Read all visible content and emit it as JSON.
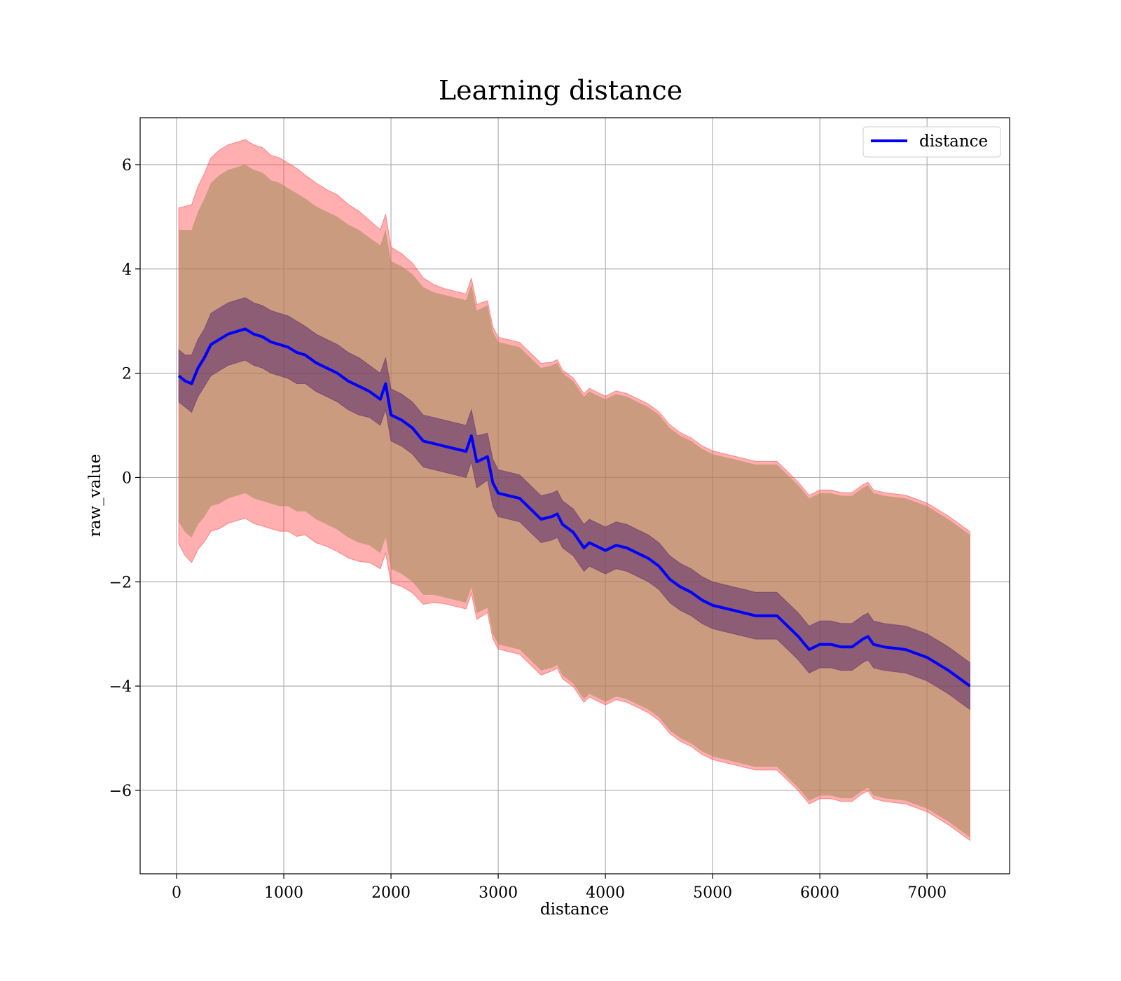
{
  "chart_data": {
    "type": "line",
    "title": "Learning distance",
    "xlabel": "distance",
    "ylabel": "raw_value",
    "xlim": [
      -340,
      7770
    ],
    "ylim": [
      -7.6,
      6.9
    ],
    "x_ticks": [
      0,
      1000,
      2000,
      3000,
      4000,
      5000,
      6000,
      7000
    ],
    "x_tick_labels": [
      "0",
      "1000",
      "2000",
      "3000",
      "4000",
      "5000",
      "6000",
      "7000"
    ],
    "y_ticks": [
      -6,
      -4,
      -2,
      0,
      2,
      4,
      6
    ],
    "y_tick_labels": [
      "−6",
      "−4",
      "−2",
      "0",
      "2",
      "4",
      "6"
    ],
    "grid": true,
    "legend_position": "top-right",
    "series": [
      {
        "name": "distance",
        "color": "#0000ff",
        "x": [
          20,
          80,
          140,
          200,
          260,
          320,
          400,
          480,
          560,
          640,
          720,
          800,
          880,
          960,
          1040,
          1120,
          1200,
          1300,
          1400,
          1500,
          1600,
          1700,
          1800,
          1900,
          1950,
          2000,
          2100,
          2200,
          2300,
          2400,
          2500,
          2600,
          2700,
          2750,
          2800,
          2900,
          2950,
          3000,
          3100,
          3200,
          3300,
          3400,
          3500,
          3550,
          3600,
          3700,
          3800,
          3850,
          3900,
          4000,
          4100,
          4200,
          4300,
          4400,
          4500,
          4600,
          4700,
          4800,
          4900,
          5000,
          5100,
          5200,
          5300,
          5400,
          5500,
          5600,
          5800,
          5900,
          6000,
          6100,
          6200,
          6300,
          6400,
          6450,
          6500,
          6600,
          6800,
          7000,
          7200,
          7400
        ],
        "y": [
          1.95,
          1.85,
          1.8,
          2.1,
          2.3,
          2.55,
          2.65,
          2.75,
          2.8,
          2.85,
          2.75,
          2.7,
          2.6,
          2.55,
          2.5,
          2.4,
          2.35,
          2.2,
          2.1,
          2.0,
          1.85,
          1.75,
          1.65,
          1.5,
          1.8,
          1.2,
          1.1,
          0.95,
          0.7,
          0.65,
          0.6,
          0.55,
          0.5,
          0.8,
          0.3,
          0.4,
          -0.1,
          -0.3,
          -0.35,
          -0.4,
          -0.6,
          -0.8,
          -0.75,
          -0.7,
          -0.9,
          -1.05,
          -1.35,
          -1.25,
          -1.3,
          -1.4,
          -1.3,
          -1.35,
          -1.45,
          -1.55,
          -1.7,
          -1.95,
          -2.1,
          -2.2,
          -2.35,
          -2.45,
          -2.5,
          -2.55,
          -2.6,
          -2.65,
          -2.65,
          -2.65,
          -3.05,
          -3.3,
          -3.2,
          -3.2,
          -3.25,
          -3.25,
          -3.1,
          -3.05,
          -3.2,
          -3.25,
          -3.3,
          -3.45,
          -3.7,
          -4.0
        ],
        "inner_band": [
          0.5,
          0.5,
          0.55,
          0.55,
          0.55,
          0.6,
          0.6,
          0.6,
          0.6,
          0.6,
          0.6,
          0.6,
          0.6,
          0.6,
          0.6,
          0.6,
          0.55,
          0.55,
          0.55,
          0.55,
          0.55,
          0.55,
          0.5,
          0.5,
          0.5,
          0.5,
          0.5,
          0.5,
          0.5,
          0.5,
          0.5,
          0.5,
          0.5,
          0.5,
          0.5,
          0.45,
          0.45,
          0.45,
          0.45,
          0.45,
          0.45,
          0.45,
          0.45,
          0.45,
          0.45,
          0.45,
          0.45,
          0.45,
          0.45,
          0.45,
          0.45,
          0.45,
          0.45,
          0.45,
          0.45,
          0.45,
          0.45,
          0.45,
          0.45,
          0.45,
          0.45,
          0.45,
          0.45,
          0.45,
          0.45,
          0.45,
          0.45,
          0.45,
          0.45,
          0.45,
          0.45,
          0.45,
          0.45,
          0.45,
          0.45,
          0.45,
          0.45,
          0.45,
          0.45,
          0.45
        ],
        "outer_band": [
          2.8,
          2.9,
          2.95,
          3.0,
          3.05,
          3.1,
          3.15,
          3.15,
          3.15,
          3.15,
          3.15,
          3.15,
          3.1,
          3.1,
          3.05,
          3.05,
          3.0,
          3.0,
          3.0,
          3.0,
          3.0,
          3.0,
          2.95,
          2.95,
          2.95,
          2.95,
          2.95,
          2.95,
          2.95,
          2.9,
          2.9,
          2.9,
          2.9,
          2.9,
          2.9,
          2.9,
          2.9,
          2.9,
          2.9,
          2.9,
          2.9,
          2.9,
          2.9,
          2.9,
          2.9,
          2.9,
          2.9,
          2.9,
          2.9,
          2.9,
          2.9,
          2.9,
          2.9,
          2.9,
          2.9,
          2.9,
          2.9,
          2.9,
          2.9,
          2.9,
          2.9,
          2.9,
          2.9,
          2.9,
          2.9,
          2.9,
          2.9,
          2.9,
          2.9,
          2.9,
          2.9,
          2.9,
          2.9,
          2.9,
          2.9,
          2.9,
          2.9,
          2.9,
          2.9,
          2.9
        ],
        "noise_band": [
          0.7,
          0.75,
          0.8,
          0.8,
          0.8,
          0.8,
          0.8,
          0.8,
          0.8,
          0.8,
          0.8,
          0.8,
          0.8,
          0.8,
          0.8,
          0.8,
          0.75,
          0.75,
          0.7,
          0.7,
          0.65,
          0.6,
          0.55,
          0.5,
          0.5,
          0.45,
          0.4,
          0.35,
          0.3,
          0.25,
          0.2,
          0.2,
          0.2,
          0.2,
          0.2,
          0.15,
          0.15,
          0.15,
          0.15,
          0.15,
          0.15,
          0.15,
          0.1,
          0.1,
          0.1,
          0.1,
          0.1,
          0.1,
          0.1,
          0.1,
          0.1,
          0.1,
          0.1,
          0.1,
          0.1,
          0.1,
          0.1,
          0.1,
          0.1,
          0.1,
          0.1,
          0.1,
          0.1,
          0.1,
          0.1,
          0.1,
          0.1,
          0.1,
          0.1,
          0.1,
          0.1,
          0.1,
          0.1,
          0.1,
          0.1,
          0.1,
          0.1,
          0.1,
          0.1,
          0.1
        ]
      }
    ]
  },
  "colors": {
    "line": "#0000ff",
    "outer_band": "#ff4d4d",
    "mid_band": "#a08a5a",
    "inner_band": "#5a2a6a",
    "grid": "#b0b0b0",
    "axes": "#000000"
  }
}
